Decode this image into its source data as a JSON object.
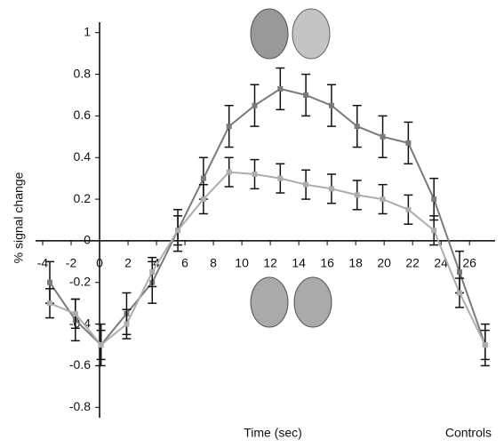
{
  "chart_data": {
    "type": "line",
    "y_label": "% signal change",
    "x_label": "Time (sec)",
    "annotation": "Controls",
    "x": [
      -3.5,
      -1.7,
      0.1,
      1.9,
      3.7,
      5.5,
      7.3,
      9.1,
      10.9,
      12.7,
      14.5,
      16.3,
      18.1,
      19.9,
      21.7,
      23.5,
      25.3,
      27.1
    ],
    "series": [
      {
        "color": "#7a7a7a",
        "values": [
          -0.2,
          -0.38,
          -0.5,
          -0.35,
          -0.2,
          0.05,
          0.3,
          0.55,
          0.65,
          0.73,
          0.7,
          0.65,
          0.55,
          0.5,
          0.47,
          0.2,
          -0.15,
          -0.5
        ],
        "errors": [
          0.1,
          0.1,
          0.1,
          0.1,
          0.1,
          0.1,
          0.1,
          0.1,
          0.1,
          0.1,
          0.1,
          0.1,
          0.1,
          0.1,
          0.1,
          0.1,
          0.1,
          0.1
        ]
      },
      {
        "color": "#adadad",
        "values": [
          -0.3,
          -0.35,
          -0.5,
          -0.4,
          -0.15,
          0.05,
          0.2,
          0.33,
          0.32,
          0.3,
          0.27,
          0.25,
          0.22,
          0.2,
          0.15,
          0.05,
          -0.25,
          -0.5
        ],
        "errors": [
          0.07,
          0.07,
          0.07,
          0.07,
          0.07,
          0.07,
          0.07,
          0.07,
          0.07,
          0.07,
          0.07,
          0.07,
          0.07,
          0.07,
          0.07,
          0.07,
          0.07,
          0.07
        ]
      }
    ],
    "xlim": [
      -4.5,
      27.8
    ],
    "xticks": [
      -4,
      -2,
      0,
      2,
      4,
      6,
      8,
      10,
      12,
      14,
      16,
      18,
      20,
      22,
      24,
      26
    ],
    "ylim": [
      -0.85,
      1.05
    ],
    "yticks": [
      -0.8,
      -0.6,
      -0.4,
      -0.2,
      0,
      0.2,
      0.4,
      0.6,
      0.8,
      1
    ]
  }
}
